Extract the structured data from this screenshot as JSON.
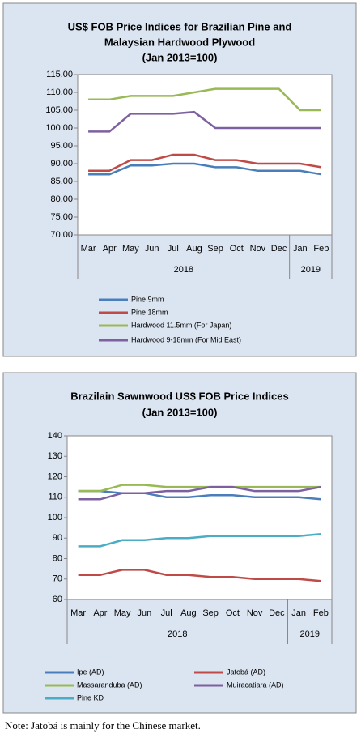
{
  "chart_data": [
    {
      "type": "line",
      "title": [
        "US$ FOB Price Indices for Brazilian Pine and",
        "Malaysian Hardwood Plywood",
        "(Jan 2013=100)"
      ],
      "categories": [
        "Mar",
        "Apr",
        "May",
        "Jun",
        "Jul",
        "Aug",
        "Sep",
        "Oct",
        "Nov",
        "Dec",
        "Jan",
        "Feb"
      ],
      "x_groups": [
        {
          "label": "2018",
          "from": "Mar",
          "to": "Dec"
        },
        {
          "label": "2019",
          "from": "Jan",
          "to": "Feb"
        }
      ],
      "ylim": [
        70,
        115
      ],
      "yticks": [
        {
          "value": 70,
          "label": "70.00"
        },
        {
          "value": 75,
          "label": "75.00"
        },
        {
          "value": 80,
          "label": "80.00"
        },
        {
          "value": 85,
          "label": "85.00"
        },
        {
          "value": 90,
          "label": "90.00"
        },
        {
          "value": 95,
          "label": "95.00"
        },
        {
          "value": 100,
          "label": "100.00"
        },
        {
          "value": 105,
          "label": "105.00"
        },
        {
          "value": 110,
          "label": "110.00"
        },
        {
          "value": 115,
          "label": "115.00"
        }
      ],
      "series": [
        {
          "name": "Pine 9mm",
          "color": "#4a7ebb",
          "values": [
            87,
            87,
            89.5,
            89.5,
            90,
            90,
            89,
            89,
            88,
            88,
            88,
            87
          ]
        },
        {
          "name": "Pine 18mm",
          "color": "#be4b48",
          "values": [
            88,
            88,
            91,
            91,
            92.5,
            92.5,
            91,
            91,
            90,
            90,
            90,
            89
          ]
        },
        {
          "name": "Hardwood 11.5mm (For Japan)",
          "color": "#98b954",
          "values": [
            108,
            108,
            109,
            109,
            109,
            110,
            111,
            111,
            111,
            111,
            105,
            105
          ]
        },
        {
          "name": "Hardwood 9-18mm (For Mid East)",
          "color": "#7d60a0",
          "values": [
            99,
            99,
            104,
            104,
            104,
            104.5,
            100,
            100,
            100,
            100,
            100,
            100
          ]
        }
      ]
    },
    {
      "type": "line",
      "title": [
        "Brazilain Sawnwood US$ FOB Price Indices",
        "(Jan 2013=100)"
      ],
      "categories": [
        "Mar",
        "Apr",
        "May",
        "Jun",
        "Jul",
        "Aug",
        "Sep",
        "Oct",
        "Nov",
        "Dec",
        "Jan",
        "Feb"
      ],
      "x_groups": [
        {
          "label": "2018",
          "from": "Mar",
          "to": "Dec"
        },
        {
          "label": "2019",
          "from": "Jan",
          "to": "Feb"
        }
      ],
      "ylim": [
        60,
        140
      ],
      "yticks": [
        60,
        70,
        80,
        90,
        100,
        110,
        120,
        130,
        140
      ],
      "series": [
        {
          "name": "Ipe (AD)",
          "color": "#4a7ebb",
          "values": [
            113,
            113,
            112,
            112,
            110,
            110,
            111,
            111,
            110,
            110,
            110,
            109
          ]
        },
        {
          "name": "Jatobá (AD)",
          "color": "#be4b48",
          "values": [
            72,
            72,
            74.5,
            74.5,
            72,
            72,
            71,
            71,
            70,
            70,
            70,
            69
          ]
        },
        {
          "name": "Massaranduba (AD)",
          "color": "#98b954",
          "values": [
            113,
            113,
            116,
            116,
            115,
            115,
            115,
            115,
            115,
            115,
            115,
            115
          ]
        },
        {
          "name": "Muiracatiara (AD)",
          "color": "#7d60a0",
          "values": [
            109,
            109,
            112,
            112,
            113,
            113,
            115,
            115,
            113,
            113,
            113,
            115
          ]
        },
        {
          "name": "Pine KD",
          "color": "#4bacc6",
          "values": [
            86,
            86,
            89,
            89,
            90,
            90,
            91,
            91,
            91,
            91,
            91,
            92
          ]
        }
      ]
    }
  ],
  "note": "Note: Jatobá is mainly for the Chinese market."
}
